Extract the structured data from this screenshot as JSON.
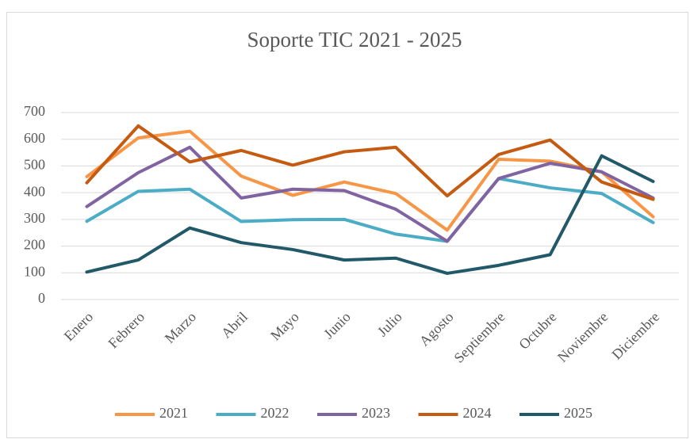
{
  "chart_data": {
    "type": "line",
    "title": "Soporte TIC 2021 - 2025",
    "categories": [
      "Enero",
      "Febrero",
      "Marzo",
      "Abril",
      "Mayo",
      "Junio",
      "Julio",
      "Agosto",
      "Septiembre",
      "Octubre",
      "Noviembre",
      "Diciembre"
    ],
    "series": [
      {
        "name": "2021",
        "color": "#f79646",
        "values": [
          460,
          605,
          630,
          462,
          390,
          440,
          397,
          260,
          525,
          518,
          478,
          310
        ]
      },
      {
        "name": "2022",
        "color": "#4bacc6",
        "values": [
          293,
          405,
          413,
          292,
          299,
          300,
          245,
          218,
          453,
          418,
          397,
          288
        ]
      },
      {
        "name": "2023",
        "color": "#8064a2",
        "values": [
          348,
          475,
          570,
          380,
          413,
          408,
          338,
          218,
          453,
          510,
          478,
          380
        ]
      },
      {
        "name": "2024",
        "color": "#c55a11",
        "values": [
          437,
          650,
          515,
          558,
          503,
          553,
          570,
          388,
          543,
          597,
          440,
          375
        ]
      },
      {
        "name": "2025",
        "color": "#215968",
        "values": [
          103,
          148,
          268,
          213,
          187,
          148,
          155,
          98,
          128,
          168,
          538,
          442
        ]
      }
    ],
    "ylim": [
      0,
      700
    ],
    "yticks": [
      0,
      100,
      200,
      300,
      400,
      500,
      600,
      700
    ],
    "grid": true,
    "legend": "bottom"
  }
}
